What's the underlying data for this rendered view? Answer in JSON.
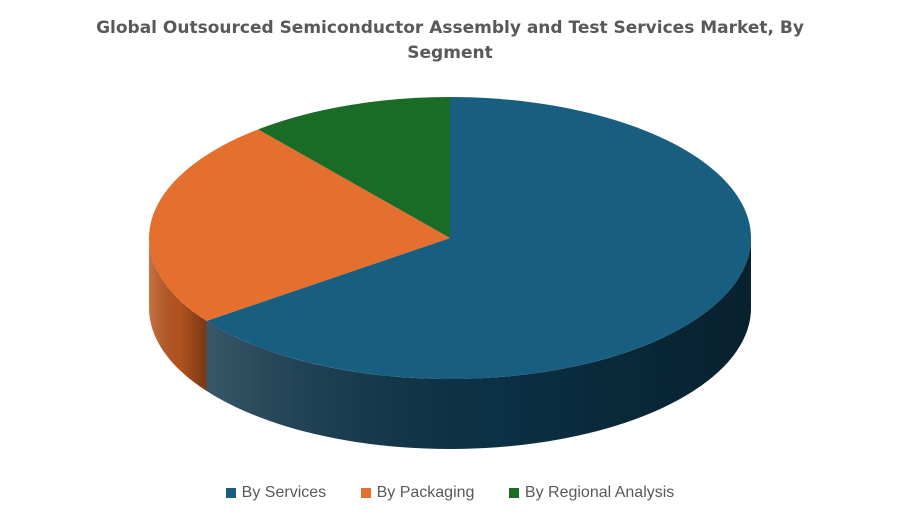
{
  "chart_data": {
    "type": "pie",
    "title": "Global Outsourced Semiconductor Assembly and Test Services Market, By Segment",
    "categories": [
      "By Services",
      "By Packaging",
      "By Regional Analysis"
    ],
    "values": [
      65,
      24,
      11
    ],
    "colors": [
      "#175E80",
      "#E56F2E",
      "#1A6B25"
    ],
    "side_colors": [
      "#0C3247",
      "#B9561F",
      "#114418"
    ],
    "legend_position": "bottom"
  }
}
